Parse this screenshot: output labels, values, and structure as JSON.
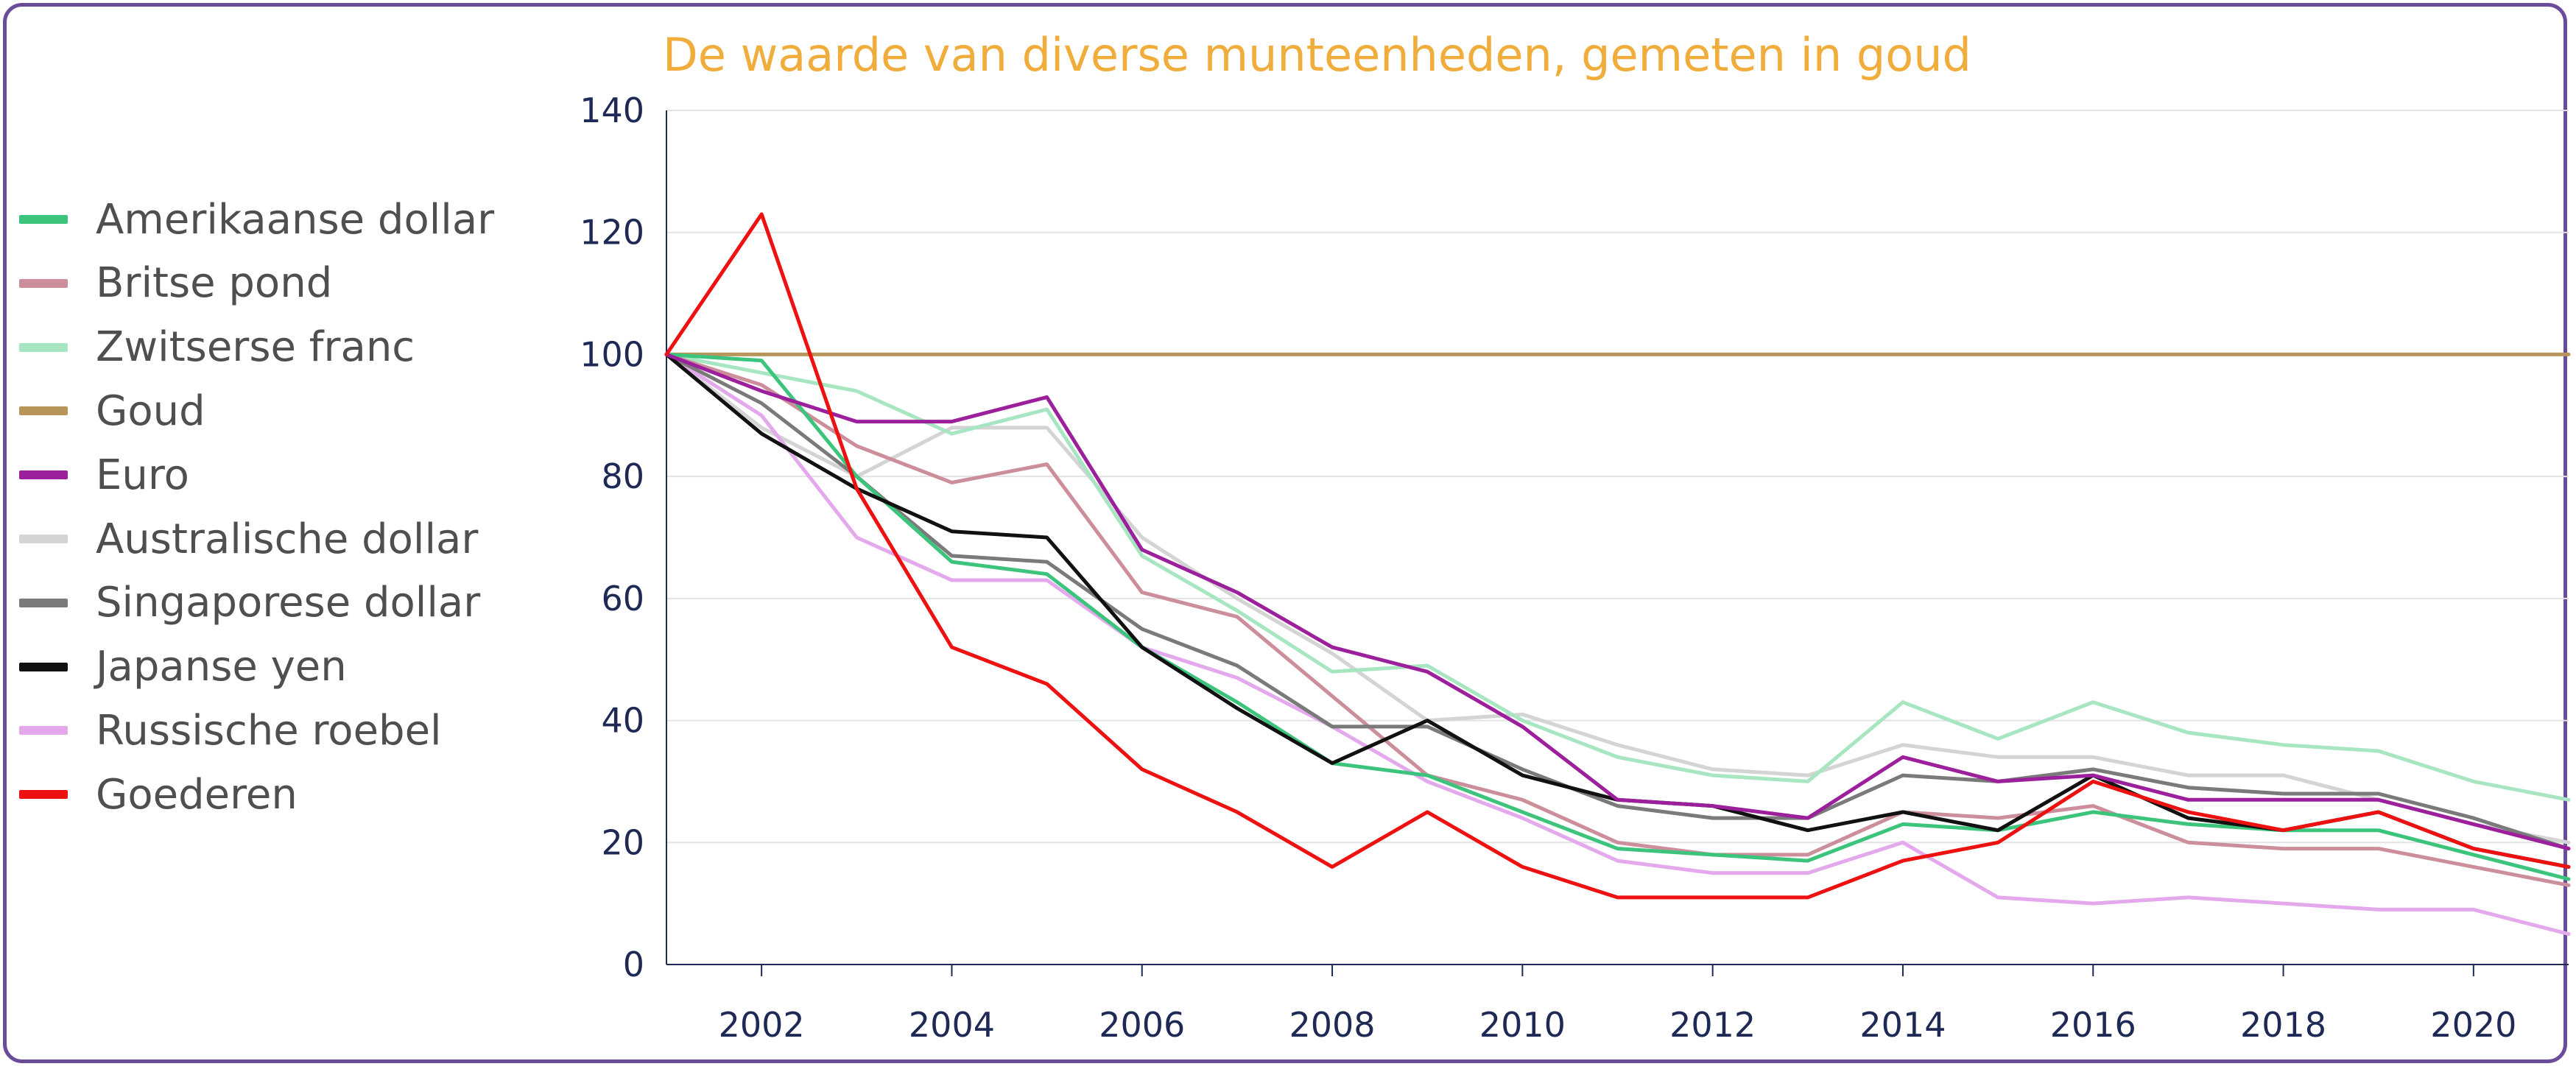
{
  "chart_data": {
    "type": "line",
    "title": "De waarde van diverse munteenheden, gemeten in goud",
    "xlabel": "",
    "ylabel": "",
    "ylim": [
      0,
      140
    ],
    "xlim": [
      2001,
      2021
    ],
    "yticks": [
      0,
      20,
      40,
      60,
      80,
      100,
      120,
      140
    ],
    "xticks": [
      2002,
      2004,
      2006,
      2008,
      2010,
      2012,
      2014,
      2016,
      2018,
      2020
    ],
    "grid": "horizontal",
    "legend_placement": "left",
    "x": [
      2001,
      2002,
      2003,
      2004,
      2005,
      2006,
      2007,
      2008,
      2009,
      2010,
      2011,
      2012,
      2013,
      2014,
      2015,
      2016,
      2017,
      2018,
      2019,
      2020,
      2021
    ],
    "series": [
      {
        "name": "Amerikaanse dollar",
        "color": "#3cc47c",
        "values": [
          100,
          99,
          80,
          66,
          64,
          52,
          43,
          33,
          31,
          25,
          19,
          18,
          17,
          23,
          22,
          25,
          23,
          22,
          22,
          18,
          14
        ]
      },
      {
        "name": "Britse pond",
        "color": "#cc8e9a",
        "values": [
          100,
          95,
          85,
          79,
          82,
          61,
          57,
          44,
          31,
          27,
          20,
          18,
          18,
          25,
          24,
          26,
          20,
          19,
          19,
          16,
          13
        ]
      },
      {
        "name": "Zwitserse franc",
        "color": "#a8e6c2",
        "values": [
          100,
          97,
          94,
          87,
          91,
          67,
          58,
          48,
          49,
          40,
          34,
          31,
          30,
          43,
          37,
          43,
          38,
          36,
          35,
          30,
          27
        ]
      },
      {
        "name": "Goud",
        "color": "#b8955a",
        "values": [
          100,
          100,
          100,
          100,
          100,
          100,
          100,
          100,
          100,
          100,
          100,
          100,
          100,
          100,
          100,
          100,
          100,
          100,
          100,
          100,
          100
        ]
      },
      {
        "name": "Euro",
        "color": "#9c1f9c",
        "values": [
          100,
          94,
          89,
          89,
          93,
          68,
          61,
          52,
          48,
          39,
          27,
          26,
          24,
          34,
          30,
          31,
          27,
          27,
          27,
          23,
          19
        ]
      },
      {
        "name": "Australische dollar",
        "color": "#d4d4d4",
        "values": [
          100,
          88,
          80,
          88,
          88,
          70,
          60,
          51,
          40,
          41,
          36,
          32,
          31,
          36,
          34,
          34,
          31,
          31,
          27,
          23,
          20
        ]
      },
      {
        "name": "Singaporese dollar",
        "color": "#7a7a7a",
        "values": [
          100,
          92,
          80,
          67,
          66,
          55,
          49,
          39,
          39,
          32,
          26,
          24,
          24,
          31,
          30,
          32,
          29,
          28,
          28,
          24,
          19
        ]
      },
      {
        "name": "Japanse yen",
        "color": "#111111",
        "values": [
          100,
          87,
          78,
          71,
          70,
          52,
          42,
          33,
          40,
          31,
          27,
          26,
          22,
          25,
          22,
          31,
          24,
          22,
          25,
          19,
          16
        ]
      },
      {
        "name": "Russische roebel",
        "color": "#e4a8ec",
        "values": [
          100,
          90,
          70,
          63,
          63,
          52,
          47,
          39,
          30,
          24,
          17,
          15,
          15,
          20,
          11,
          10,
          11,
          10,
          9,
          9,
          5
        ]
      },
      {
        "name": "Goederen",
        "color": "#ee1111",
        "values": [
          100,
          123,
          78,
          52,
          46,
          32,
          25,
          16,
          25,
          16,
          11,
          11,
          11,
          17,
          20,
          30,
          25,
          22,
          25,
          19,
          16
        ]
      }
    ]
  }
}
